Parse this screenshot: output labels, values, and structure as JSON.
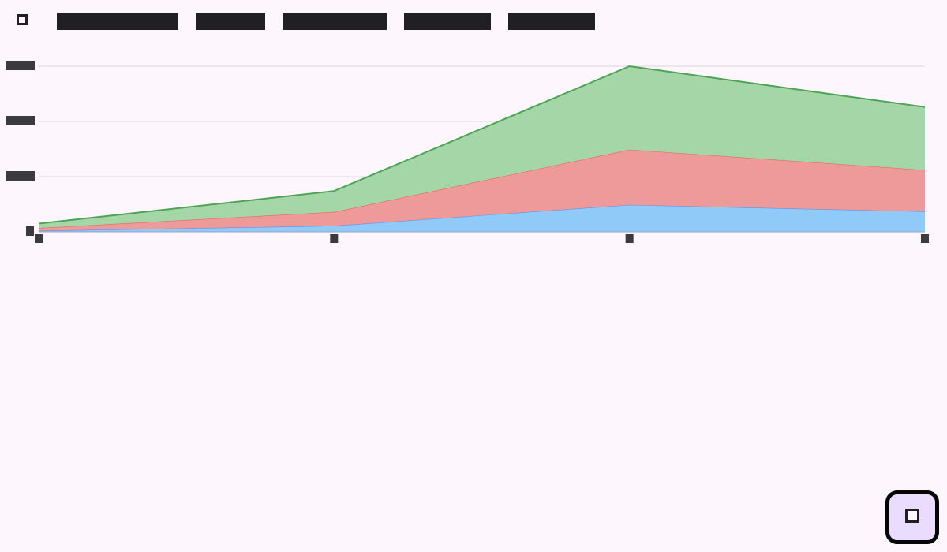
{
  "header": {
    "menu_icon": "square-icon",
    "tabs": [
      {
        "label": ""
      },
      {
        "label": ""
      },
      {
        "label": ""
      },
      {
        "label": ""
      },
      {
        "label": ""
      }
    ]
  },
  "chart_data": {
    "type": "area",
    "stacked": true,
    "title": "",
    "xlabel": "",
    "ylabel": "",
    "x": [
      "",
      "",
      "",
      ""
    ],
    "yticks": [
      "",
      "",
      "",
      ""
    ],
    "ylim": [
      0,
      3
    ],
    "grid": true,
    "legend": "none",
    "series": [
      {
        "color": "#90caf9",
        "line_color": "#6b8ede",
        "values": [
          0.02,
          0.11,
          0.49,
          0.37
        ]
      },
      {
        "color": "#ef9a9a",
        "line_color": "#de6d5c",
        "values": [
          0.05,
          0.25,
          1.0,
          0.75
        ]
      },
      {
        "color": "#a5d6a7",
        "line_color": "#4ea356",
        "values": [
          0.08,
          0.38,
          1.51,
          1.14
        ]
      }
    ]
  },
  "fab": {
    "icon": "square-icon"
  },
  "colors": {
    "background": "#fdf7fd",
    "dark": "#1f1f24",
    "fab_background": "#eadcff"
  }
}
